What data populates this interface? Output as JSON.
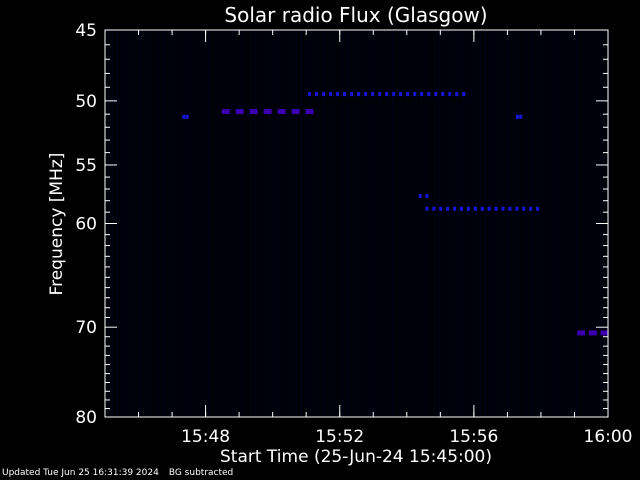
{
  "chart_data": {
    "type": "heatmap",
    "title": "Solar radio Flux (Glasgow)",
    "xlabel": "Start Time (25-Jun-24 15:45:00)",
    "ylabel": "Frequency [MHz]",
    "x_start_min": 0,
    "xlim_minutes": [
      0,
      15
    ],
    "x_ticks": [
      {
        "minute": 3,
        "label": "15:48"
      },
      {
        "minute": 7,
        "label": "15:52"
      },
      {
        "minute": 11,
        "label": "15:56"
      },
      {
        "minute": 15,
        "label": "16:00"
      }
    ],
    "ylim": [
      45,
      80
    ],
    "y_scale": "log",
    "y_ticks": [
      45,
      50,
      55,
      60,
      70,
      80
    ],
    "y_tick_labels": [
      "45",
      "50",
      "55",
      "60",
      "70",
      "80"
    ],
    "emission_features": [
      {
        "band": "faint-channel",
        "f_mhz": 49.5,
        "t_start": 6.1,
        "t_end": 10.7,
        "intensity": "low"
      },
      {
        "band": "band-51",
        "f_mhz": 50.8,
        "t_start": 3.6,
        "t_end": 6.1,
        "intensity": "medium"
      },
      {
        "band": "spot-51-left",
        "f_mhz": 51.2,
        "t_start": 2.35,
        "t_end": 2.45,
        "intensity": "low"
      },
      {
        "band": "spot-51-right",
        "f_mhz": 51.2,
        "t_start": 12.3,
        "t_end": 12.4,
        "intensity": "low"
      },
      {
        "band": "drift-57-58",
        "f_mhz": 57.6,
        "t_start": 9.4,
        "t_end": 9.6,
        "intensity": "low"
      },
      {
        "band": "band-58.5",
        "f_mhz": 58.7,
        "t_start": 9.6,
        "t_end": 12.9,
        "intensity": "low"
      },
      {
        "band": "band-70.5",
        "f_mhz": 70.6,
        "t_start": 14.2,
        "t_end": 14.9,
        "intensity": "medium"
      }
    ],
    "colors": {
      "background": "#000000",
      "emission_low": "#1a1aff",
      "emission_medium": "#4400cc",
      "axes": "#ffffff"
    }
  },
  "footer": {
    "updated": "Updated Tue Jun 25 16:31:39 2024",
    "note": "BG subtracted"
  }
}
